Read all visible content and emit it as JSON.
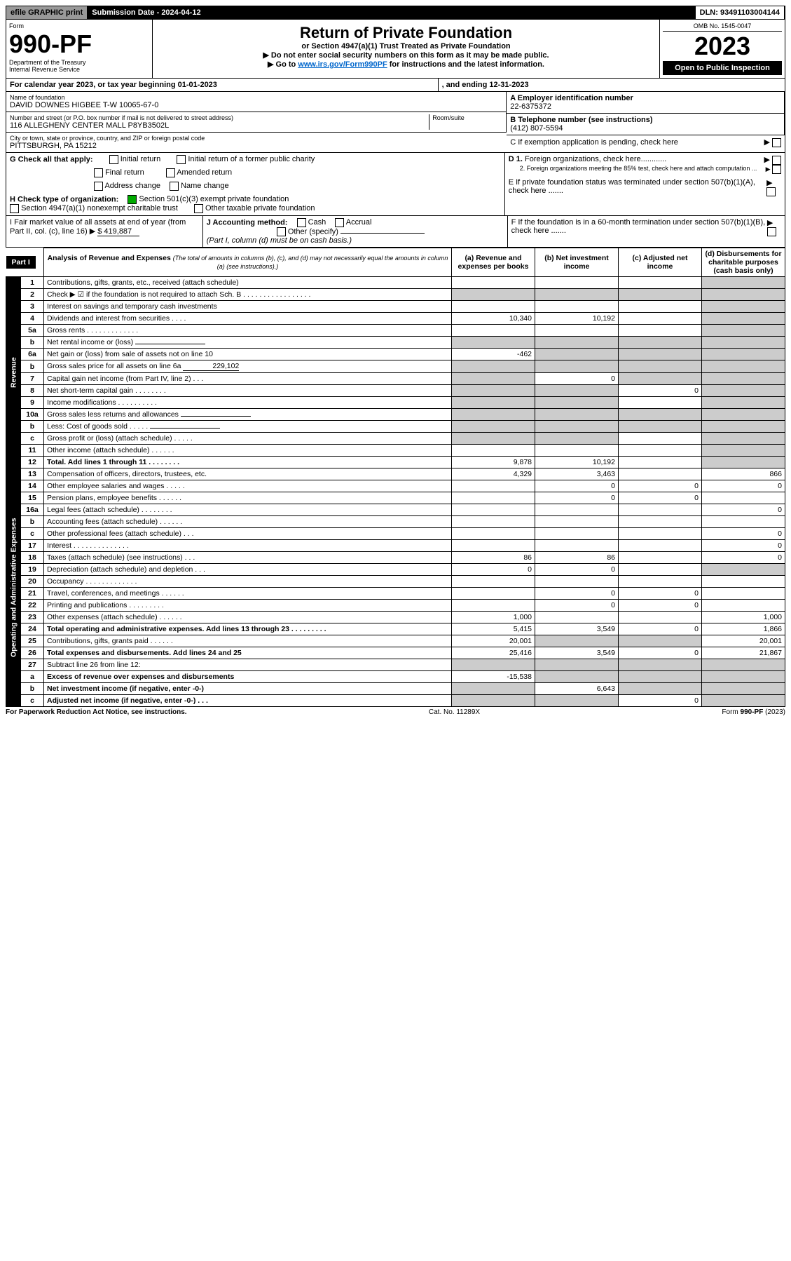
{
  "topbar": {
    "efile": "efile GRAPHIC print",
    "sub": "Submission Date - 2024-04-12",
    "dln": "DLN: 93491103004144"
  },
  "hdr": {
    "form_label": "Form",
    "form_no": "990-PF",
    "dept": "Department of the Treasury",
    "irs": "Internal Revenue Service",
    "title": "Return of Private Foundation",
    "sub1": "or Section 4947(a)(1) Trust Treated as Private Foundation",
    "sub2": "▶ Do not enter social security numbers on this form as it may be made public.",
    "sub3_a": "▶ Go to ",
    "sub3_link": "www.irs.gov/Form990PF",
    "sub3_b": " for instructions and the latest information.",
    "omb": "OMB No. 1545-0047",
    "year": "2023",
    "open": "Open to Public Inspection"
  },
  "calyr": {
    "a": "For calendar year 2023, or tax year beginning 01-01-2023",
    "b": ", and ending 12-31-2023"
  },
  "id": {
    "name_lbl": "Name of foundation",
    "name": "DAVID DOWNES HIGBEE T-W 10065-67-0",
    "addr_lbl": "Number and street (or P.O. box number if mail is not delivered to street address)",
    "addr": "116 ALLEGHENY CENTER MALL P8YB3502L",
    "room_lbl": "Room/suite",
    "city_lbl": "City or town, state or province, country, and ZIP or foreign postal code",
    "city": "PITTSBURGH, PA  15212",
    "ein_lbl": "A Employer identification number",
    "ein": "22-6375372",
    "tel_lbl": "B Telephone number (see instructions)",
    "tel": "(412) 807-5594",
    "c": "C If exemption application is pending, check here",
    "d1": "D 1. Foreign organizations, check here............",
    "d2": "2. Foreign organizations meeting the 85% test, check here and attach computation ...",
    "e": "E If private foundation status was terminated under section 507(b)(1)(A), check here .......",
    "f": "F If the foundation is in a 60-month termination under section 507(b)(1)(B), check here .......",
    "g": "G Check all that apply:",
    "g_opts": [
      "Initial return",
      "Final return",
      "Address change",
      "Initial return of a former public charity",
      "Amended return",
      "Name change"
    ],
    "h": "H Check type of organization:",
    "h1": "Section 501(c)(3) exempt private foundation",
    "h2": "Section 4947(a)(1) nonexempt charitable trust",
    "h3": "Other taxable private foundation",
    "i": "I Fair market value of all assets at end of year (from Part II, col. (c), line 16) ▶",
    "i_val": "$  419,887",
    "j": "J Accounting method:",
    "j1": "Cash",
    "j2": "Accrual",
    "j3": "Other (specify)",
    "j_note": "(Part I, column (d) must be on cash basis.)"
  },
  "part1": {
    "label": "Part I",
    "title": "Analysis of Revenue and Expenses",
    "note": "(The total of amounts in columns (b), (c), and (d) may not necessarily equal the amounts in column (a) (see instructions).)",
    "cols": {
      "a": "(a) Revenue and expenses per books",
      "b": "(b) Net investment income",
      "c": "(c) Adjusted net income",
      "d": "(d) Disbursements for charitable purposes (cash basis only)"
    },
    "side_rev": "Revenue",
    "side_exp": "Operating and Administrative Expenses"
  },
  "rows": [
    {
      "n": "1",
      "lbl": "Contributions, gifts, grants, etc., received (attach schedule)",
      "a": "",
      "b": "",
      "c": "",
      "d_shade": true
    },
    {
      "n": "2",
      "lbl": "Check ▶ ☑ if the foundation is not required to attach Sch. B . . . . . . . . . . . . . . . . .",
      "a_shade": true,
      "b_shade": true,
      "c_shade": true,
      "d_shade": true,
      "bold_part": true
    },
    {
      "n": "3",
      "lbl": "Interest on savings and temporary cash investments",
      "a": "",
      "b": "",
      "c": "",
      "d_shade": true
    },
    {
      "n": "4",
      "lbl": "Dividends and interest from securities . . . .",
      "a": "10,340",
      "b": "10,192",
      "c": "",
      "d_shade": true
    },
    {
      "n": "5a",
      "lbl": "Gross rents . . . . . . . . . . . . .",
      "a": "",
      "b": "",
      "c": "",
      "d_shade": true
    },
    {
      "n": "b",
      "lbl": "Net rental income or (loss)",
      "a_shade": true,
      "b_shade": true,
      "c_shade": true,
      "d_shade": true,
      "inline_box": true
    },
    {
      "n": "6a",
      "lbl": "Net gain or (loss) from sale of assets not on line 10",
      "a": "-462",
      "b_shade": true,
      "c_shade": true,
      "d_shade": true
    },
    {
      "n": "b",
      "lbl": "Gross sales price for all assets on line 6a",
      "inline_val": "229,102",
      "a_shade": true,
      "b_shade": true,
      "c_shade": true,
      "d_shade": true
    },
    {
      "n": "7",
      "lbl": "Capital gain net income (from Part IV, line 2) . . .",
      "a_shade": true,
      "b": "0",
      "c_shade": true,
      "d_shade": true
    },
    {
      "n": "8",
      "lbl": "Net short-term capital gain . . . . . . . .",
      "a_shade": true,
      "b_shade": true,
      "c": "0",
      "d_shade": true
    },
    {
      "n": "9",
      "lbl": "Income modifications . . . . . . . . . .",
      "a_shade": true,
      "b_shade": true,
      "c": "",
      "d_shade": true
    },
    {
      "n": "10a",
      "lbl": "Gross sales less returns and allowances",
      "a_shade": true,
      "b_shade": true,
      "c_shade": true,
      "d_shade": true,
      "inline_box": true
    },
    {
      "n": "b",
      "lbl": "Less: Cost of goods sold . . . . .",
      "a_shade": true,
      "b_shade": true,
      "c_shade": true,
      "d_shade": true,
      "inline_box": true
    },
    {
      "n": "c",
      "lbl": "Gross profit or (loss) (attach schedule) . . . . .",
      "a_shade": true,
      "b_shade": true,
      "c": "",
      "d_shade": true
    },
    {
      "n": "11",
      "lbl": "Other income (attach schedule) . . . . . .",
      "a": "",
      "b": "",
      "c": "",
      "d_shade": true
    },
    {
      "n": "12",
      "lbl": "Total. Add lines 1 through 11 . . . . . . . .",
      "a": "9,878",
      "b": "10,192",
      "c": "",
      "d_shade": true,
      "bold": true
    },
    {
      "n": "13",
      "lbl": "Compensation of officers, directors, trustees, etc.",
      "a": "4,329",
      "b": "3,463",
      "c": "",
      "d": "866"
    },
    {
      "n": "14",
      "lbl": "Other employee salaries and wages . . . . .",
      "a": "",
      "b": "0",
      "c": "0",
      "d": "0"
    },
    {
      "n": "15",
      "lbl": "Pension plans, employee benefits . . . . . .",
      "a": "",
      "b": "0",
      "c": "0",
      "d": ""
    },
    {
      "n": "16a",
      "lbl": "Legal fees (attach schedule) . . . . . . . .",
      "a": "",
      "b": "",
      "c": "",
      "d": "0"
    },
    {
      "n": "b",
      "lbl": "Accounting fees (attach schedule) . . . . . .",
      "a": "",
      "b": "",
      "c": "",
      "d": ""
    },
    {
      "n": "c",
      "lbl": "Other professional fees (attach schedule) . . .",
      "a": "",
      "b": "",
      "c": "",
      "d": "0"
    },
    {
      "n": "17",
      "lbl": "Interest . . . . . . . . . . . . . .",
      "a": "",
      "b": "",
      "c": "",
      "d": "0"
    },
    {
      "n": "18",
      "lbl": "Taxes (attach schedule) (see instructions) . . .",
      "a": "86",
      "b": "86",
      "c": "",
      "d": "0"
    },
    {
      "n": "19",
      "lbl": "Depreciation (attach schedule) and depletion . . .",
      "a": "0",
      "b": "0",
      "c": "",
      "d_shade": true
    },
    {
      "n": "20",
      "lbl": "Occupancy . . . . . . . . . . . . .",
      "a": "",
      "b": "",
      "c": "",
      "d": ""
    },
    {
      "n": "21",
      "lbl": "Travel, conferences, and meetings . . . . . .",
      "a": "",
      "b": "0",
      "c": "0",
      "d": ""
    },
    {
      "n": "22",
      "lbl": "Printing and publications . . . . . . . . .",
      "a": "",
      "b": "0",
      "c": "0",
      "d": ""
    },
    {
      "n": "23",
      "lbl": "Other expenses (attach schedule) . . . . . .",
      "a": "1,000",
      "b": "",
      "c": "",
      "d": "1,000"
    },
    {
      "n": "24",
      "lbl": "Total operating and administrative expenses. Add lines 13 through 23 . . . . . . . . .",
      "a": "5,415",
      "b": "3,549",
      "c": "0",
      "d": "1,866",
      "bold": true
    },
    {
      "n": "25",
      "lbl": "Contributions, gifts, grants paid . . . . . .",
      "a": "20,001",
      "b_shade": true,
      "c_shade": true,
      "d": "20,001"
    },
    {
      "n": "26",
      "lbl": "Total expenses and disbursements. Add lines 24 and 25",
      "a": "25,416",
      "b": "3,549",
      "c": "0",
      "d": "21,867",
      "bold": true
    },
    {
      "n": "27",
      "lbl": "Subtract line 26 from line 12:",
      "a_shade": true,
      "b_shade": true,
      "c_shade": true,
      "d_shade": true
    },
    {
      "n": "a",
      "lbl": "Excess of revenue over expenses and disbursements",
      "a": "-15,538",
      "b_shade": true,
      "c_shade": true,
      "d_shade": true,
      "bold": true
    },
    {
      "n": "b",
      "lbl": "Net investment income (if negative, enter -0-)",
      "a_shade": true,
      "b": "6,643",
      "c_shade": true,
      "d_shade": true,
      "bold": true
    },
    {
      "n": "c",
      "lbl": "Adjusted net income (if negative, enter -0-) . . .",
      "a_shade": true,
      "b_shade": true,
      "c": "0",
      "d_shade": true,
      "bold": true
    }
  ],
  "footer": {
    "a": "For Paperwork Reduction Act Notice, see instructions.",
    "b": "Cat. No. 11289X",
    "c": "Form 990-PF (2023)"
  }
}
